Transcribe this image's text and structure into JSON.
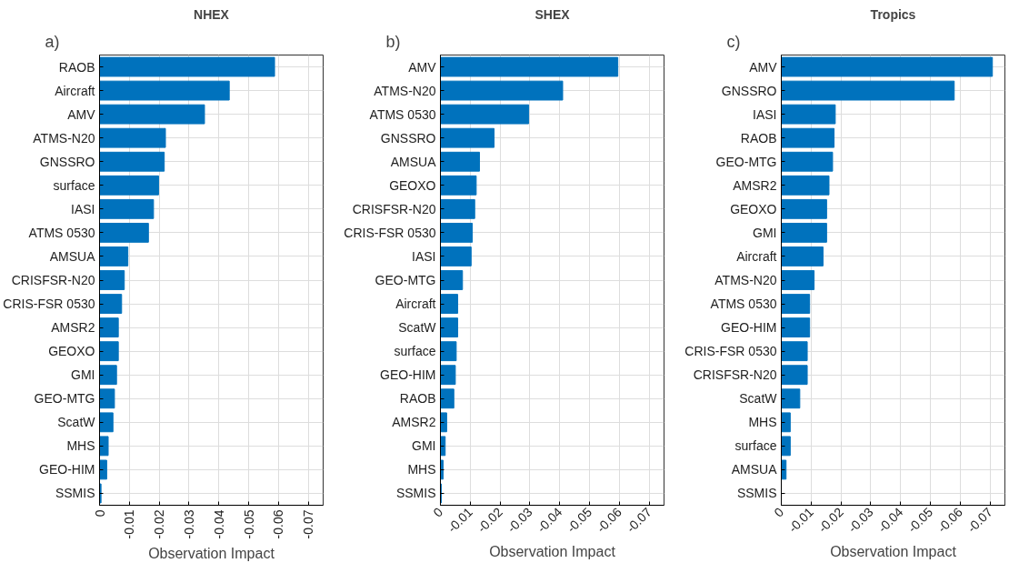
{
  "chart_data": [
    {
      "type": "bar",
      "orientation": "horizontal",
      "title": "NHEX",
      "xlabel": "Observation Impact",
      "annotations": [
        "a)"
      ],
      "grid": true,
      "categories": [
        "RAOB",
        "Aircraft",
        "AMV",
        "ATMS-N20",
        "GNSSRO",
        "surface",
        "IASI",
        "ATMS 0530",
        "AMSUA",
        "CRISFSR-N20",
        "CRIS-FSR 0530",
        "AMSR2",
        "GEOXO",
        "GMI",
        "GEO-MTG",
        "ScatW",
        "MHS",
        "GEO-HIM",
        "SSMIS"
      ],
      "values": [
        -0.0587,
        -0.0435,
        -0.0352,
        -0.0221,
        -0.0217,
        -0.0198,
        -0.0181,
        -0.0164,
        -0.0095,
        -0.0083,
        -0.0074,
        -0.0063,
        -0.0063,
        -0.0057,
        -0.005,
        -0.0045,
        -0.0029,
        -0.0024,
        -0.0005
      ],
      "color": "#0072bd",
      "xlim": [
        0,
        -0.075
      ],
      "xticks": [
        0,
        -0.01,
        -0.02,
        -0.03,
        -0.04,
        -0.05,
        -0.06,
        -0.07
      ]
    },
    {
      "type": "bar",
      "orientation": "horizontal",
      "title": "SHEX",
      "xlabel": "Observation Impact",
      "annotations": [
        "b)"
      ],
      "grid": true,
      "categories": [
        "AMV",
        "ATMS-N20",
        "ATMS 0530",
        "GNSSRO",
        "AMSUA",
        "GEOXO",
        "CRISFSR-N20",
        "CRIS-FSR 0530",
        "IASI",
        "GEO-MTG",
        "Aircraft",
        "ScatW",
        "surface",
        "GEO-HIM",
        "RAOB",
        "AMSR2",
        "GMI",
        "MHS",
        "SSMIS"
      ],
      "values": [
        -0.0595,
        -0.041,
        -0.0296,
        -0.018,
        -0.0131,
        -0.012,
        -0.0115,
        -0.0107,
        -0.0103,
        -0.0074,
        -0.0058,
        -0.0058,
        -0.0053,
        -0.005,
        -0.0045,
        -0.0021,
        -0.0016,
        -0.0009,
        -0.0003
      ],
      "color": "#0072bd",
      "xlim": [
        0,
        -0.075
      ],
      "xticks": [
        0,
        -0.01,
        -0.02,
        -0.03,
        -0.04,
        -0.05,
        -0.06,
        -0.07
      ]
    },
    {
      "type": "bar",
      "orientation": "horizontal",
      "title": "Tropics",
      "xlabel": "Observation Impact",
      "annotations": [
        "c)"
      ],
      "grid": true,
      "categories": [
        "AMV",
        "GNSSRO",
        "IASI",
        "RAOB",
        "GEO-MTG",
        "AMSR2",
        "GEOXO",
        "GMI",
        "Aircraft",
        "ATMS-N20",
        "ATMS 0530",
        "GEO-HIM",
        "CRIS-FSR 0530",
        "CRISFSR-N20",
        "ScatW",
        "MHS",
        "surface",
        "AMSUA",
        "SSMIS"
      ],
      "values": [
        -0.0708,
        -0.058,
        -0.0181,
        -0.0177,
        -0.0172,
        -0.016,
        -0.0152,
        -0.0152,
        -0.014,
        -0.011,
        -0.0095,
        -0.0095,
        -0.0087,
        -0.0087,
        -0.0062,
        -0.003,
        -0.003,
        -0.0016,
        0
      ],
      "color": "#0072bd",
      "xlim": [
        0,
        -0.075
      ],
      "xticks": [
        0,
        -0.01,
        -0.02,
        -0.03,
        -0.04,
        -0.05,
        -0.06,
        -0.07
      ]
    }
  ]
}
